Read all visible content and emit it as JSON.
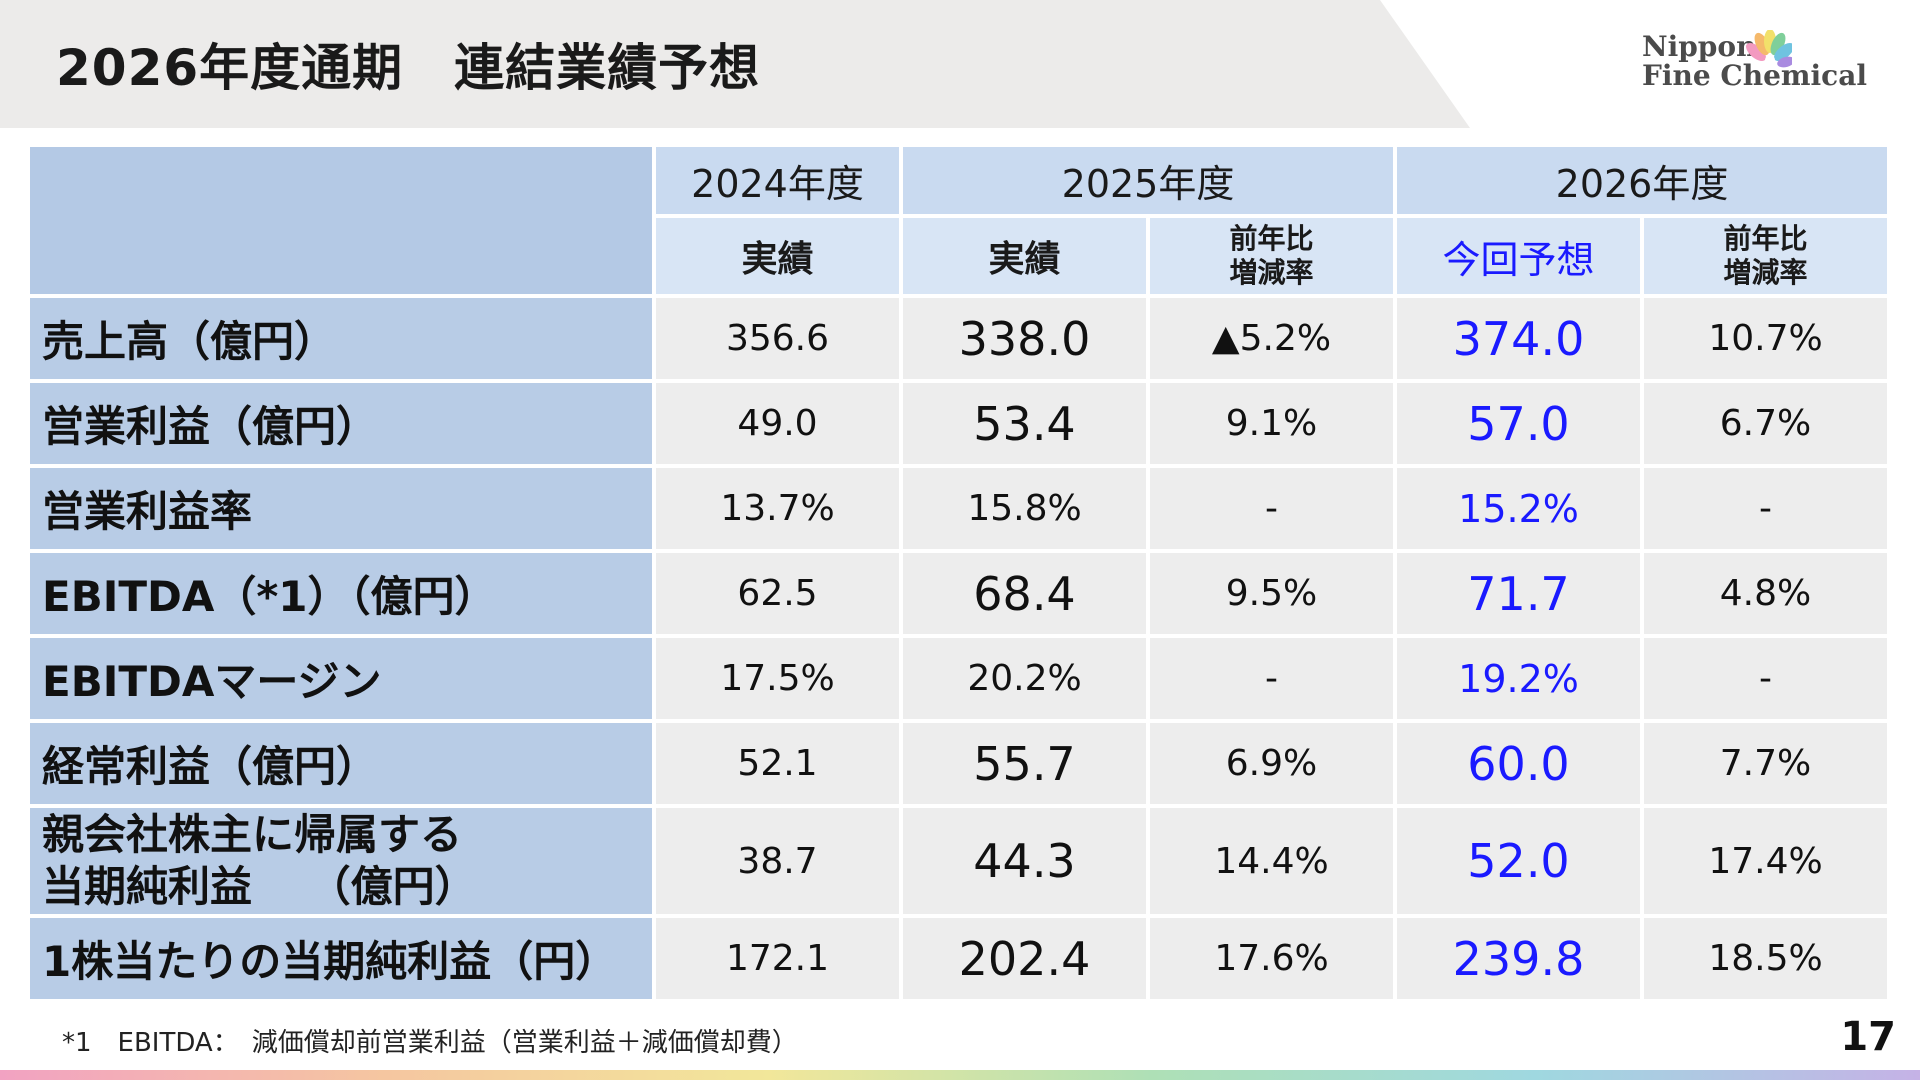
{
  "header": {
    "title": "2026年度通期　連結業績予想"
  },
  "logo": {
    "line1": "Nippon",
    "line2": "Fine Chemical",
    "mark_colors": [
      "#f39ac0",
      "#f5b96b",
      "#f2e06a",
      "#7fcf9a",
      "#6fc3e0",
      "#a98be0"
    ]
  },
  "table": {
    "years": [
      "2024年度",
      "2025年度",
      "2026年度"
    ],
    "subheaders": {
      "y2024_actual": "実績",
      "y2025_actual": "実績",
      "y2025_yoy_line1": "前年比",
      "y2025_yoy_line2": "増減率",
      "y2026_forecast": "今回予想",
      "y2026_yoy_line1": "前年比",
      "y2026_yoy_line2": "増減率"
    },
    "rows": [
      {
        "label": "売上高（億円）",
        "y2024": "356.6",
        "y2025": "338.0",
        "yoy2025": "▲5.2%",
        "y2026": "374.0",
        "yoy2026": "10.7%"
      },
      {
        "label": "営業利益（億円）",
        "y2024": "49.0",
        "y2025": "53.4",
        "yoy2025": "9.1%",
        "y2026": "57.0",
        "yoy2026": "6.7%"
      },
      {
        "label": "営業利益率",
        "y2024": "13.7%",
        "y2025": "15.8%",
        "yoy2025": "-",
        "y2026": "15.2%",
        "yoy2026": "-"
      },
      {
        "label": "EBITDA（*1）（億円）",
        "y2024": "62.5",
        "y2025": "68.4",
        "yoy2025": "9.5%",
        "y2026": "71.7",
        "yoy2026": "4.8%"
      },
      {
        "label": "EBITDAマージン",
        "y2024": "17.5%",
        "y2025": "20.2%",
        "yoy2025": "-",
        "y2026": "19.2%",
        "yoy2026": "-"
      },
      {
        "label": "経常利益（億円）",
        "y2024": "52.1",
        "y2025": "55.7",
        "yoy2025": "6.9%",
        "y2026": "60.0",
        "yoy2026": "7.7%"
      },
      {
        "label_line1": "親会社株主に帰属する",
        "label_line2": "当期純利益　 （億円）",
        "y2024": "38.7",
        "y2025": "44.3",
        "yoy2025": "14.4%",
        "y2026": "52.0",
        "yoy2026": "17.4%"
      },
      {
        "label": "1株当たりの当期純利益（円）",
        "y2024": "172.1",
        "y2025": "202.4",
        "yoy2025": "17.6%",
        "y2026": "239.8",
        "yoy2026": "18.5%"
      }
    ]
  },
  "footnote": "*1　EBITDA：　減価償却前営業利益（営業利益＋減価償却費）",
  "page_number": "17"
}
